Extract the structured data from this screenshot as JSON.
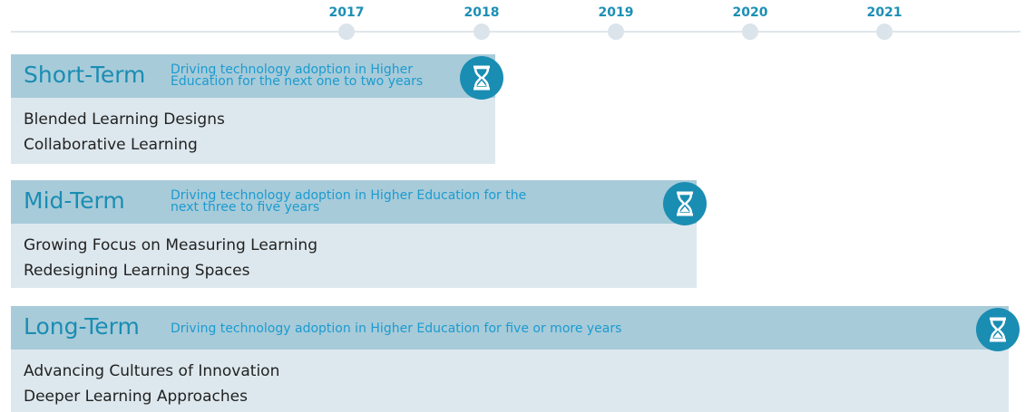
{
  "timeline": {
    "years": [
      "2017",
      "2018",
      "2019",
      "2020",
      "2021"
    ]
  },
  "sections": [
    {
      "title": "Short-Term",
      "description": [
        "Driving technology adoption in Higher",
        "Education for the next one to two years"
      ],
      "items": [
        "Blended Learning Designs",
        "Collaborative Learning"
      ]
    },
    {
      "title": "Mid-Term",
      "description": [
        "Driving technology adoption in Higher Education for the",
        "next three to five years"
      ],
      "items": [
        "Growing Focus on Measuring Learning",
        "Redesigning Learning Spaces"
      ]
    },
    {
      "title": "Long-Term",
      "description": [
        "Driving technology adoption in Higher Education for five or more years"
      ],
      "items": [
        "Advancing Cultures of Innovation",
        "Deeper Learning Approaches"
      ]
    }
  ]
}
